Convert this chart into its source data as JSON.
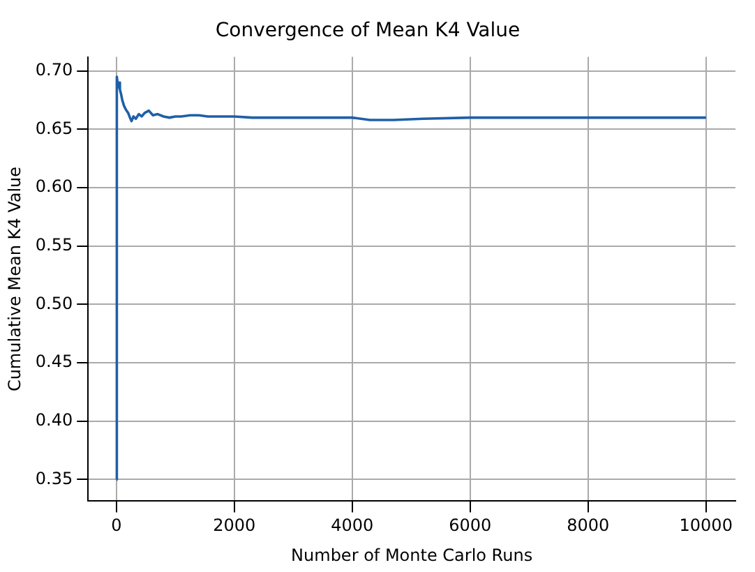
{
  "chart_data": {
    "type": "line",
    "title": "Convergence of Mean K4 Value",
    "xlabel": "Number of Monte Carlo Runs",
    "ylabel": "Cumulative Mean K4 Value",
    "series": [
      {
        "color": "#1f5fa8",
        "x": [
          1,
          5,
          10,
          20,
          30,
          40,
          60,
          80,
          100,
          130,
          160,
          200,
          230,
          257,
          290,
          330,
          380,
          430,
          480,
          550,
          620,
          700,
          800,
          900,
          1000,
          1100,
          1250,
          1400,
          1550,
          1700,
          2000,
          2300,
          2600,
          3000,
          3500,
          4000,
          4300,
          4700,
          5200,
          6000,
          7000,
          8000,
          9000,
          10000
        ],
        "values": [
          0.35,
          0.69,
          0.695,
          0.69,
          0.686,
          0.69,
          0.684,
          0.68,
          0.675,
          0.67,
          0.667,
          0.664,
          0.66,
          0.657,
          0.661,
          0.659,
          0.663,
          0.661,
          0.664,
          0.666,
          0.662,
          0.663,
          0.661,
          0.66,
          0.661,
          0.661,
          0.662,
          0.662,
          0.661,
          0.661,
          0.661,
          0.66,
          0.66,
          0.66,
          0.66,
          0.66,
          0.658,
          0.658,
          0.659,
          0.66,
          0.66,
          0.66,
          0.66,
          0.66
        ]
      }
    ],
    "xlim": [
      -480,
      10500
    ],
    "ylim": [
      0.3315,
      0.712
    ],
    "xticks": [
      0,
      2000,
      4000,
      6000,
      8000,
      10000
    ],
    "yticks": [
      {
        "value": 0.35,
        "label": "0.35"
      },
      {
        "value": 0.4,
        "label": "0.40"
      },
      {
        "value": 0.45,
        "label": "0.45"
      },
      {
        "value": 0.5,
        "label": "0.50"
      },
      {
        "value": 0.55,
        "label": "0.55"
      },
      {
        "value": 0.6,
        "label": "0.60"
      },
      {
        "value": 0.65,
        "label": "0.65"
      },
      {
        "value": 0.7,
        "label": "0.70"
      }
    ],
    "grid": true,
    "legend": false,
    "marker": "none",
    "line_style": "solid"
  }
}
